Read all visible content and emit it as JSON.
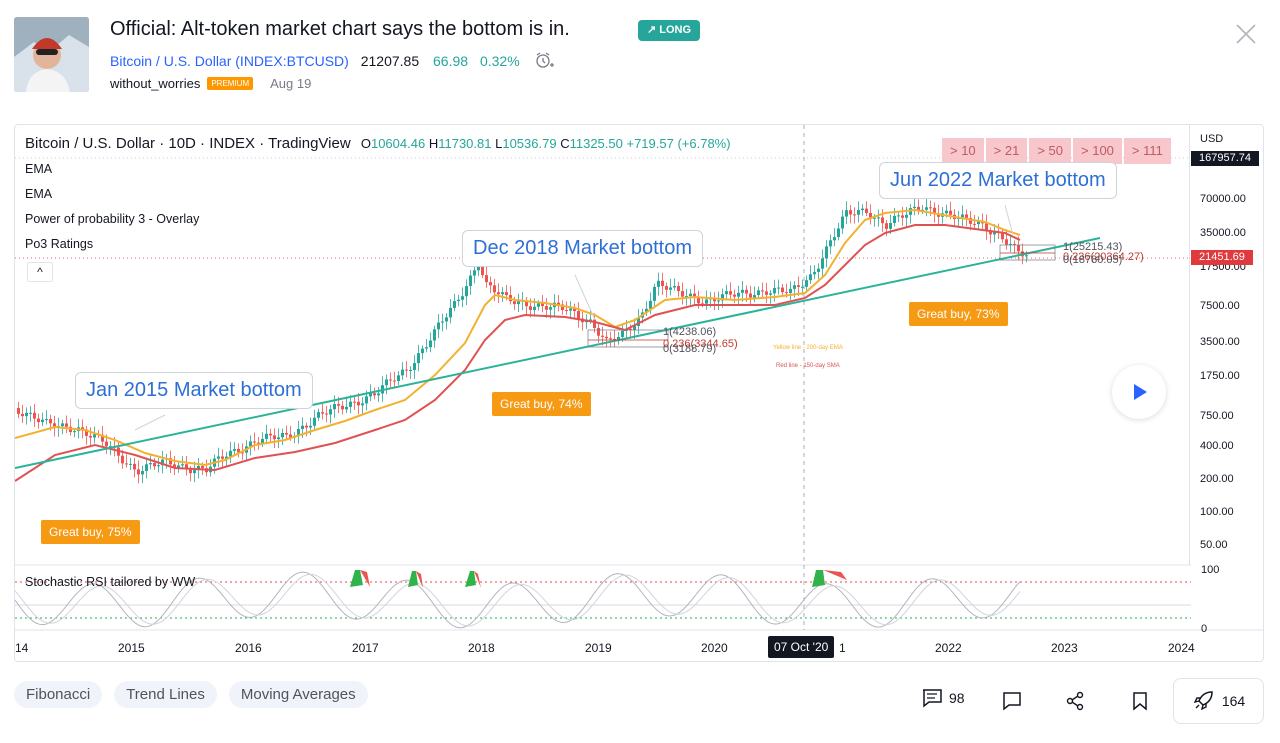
{
  "header": {
    "title": "Official: Alt-token market chart says the bottom is in.",
    "direction_badge": "LONG",
    "symbol_name": "Bitcoin / U.S. Dollar",
    "symbol_code": "(INDEX:BTCUSD)",
    "price": "21207.85",
    "change": "66.98",
    "change_pct": "0.32%",
    "author": "without_worries",
    "author_badge": "PREMIUM",
    "date": "Aug 19"
  },
  "chart": {
    "legend_title": "Bitcoin / U.S. Dollar · 10D · INDEX · TradingView",
    "ohlc": {
      "o_label": "O",
      "o": "10604.46",
      "h_label": "H",
      "h": "11730.81",
      "l_label": "L",
      "l": "10536.79",
      "c_label": "C",
      "c": "11325.50",
      "change": "+719.57 (+6.78%)"
    },
    "indicators": [
      "EMA",
      "EMA",
      "Power of probability 3 - Overlay",
      "Po3 Ratings"
    ],
    "collapse_symbol": "^",
    "filters": [
      "> 10",
      "> 21",
      "> 50",
      "> 100",
      "> 111"
    ],
    "y_axis": {
      "currency": "USD",
      "ticks": [
        "70000.00",
        "35000.00",
        "17500.00",
        "7500.00",
        "3500.00",
        "1750.00",
        "750.00",
        "400.00",
        "200.00",
        "100.00",
        "50.00"
      ],
      "top_tag": "167957.74",
      "price_tag": "21451.69"
    },
    "rsi": {
      "label": "Stochastic RSI tailored by WW",
      "ticks": [
        "100",
        "0"
      ]
    },
    "x_axis": {
      "ticks": [
        "14",
        "2015",
        "2016",
        "2017",
        "2018",
        "2019",
        "2020",
        "1",
        "2022",
        "2023",
        "2024"
      ],
      "crosshair_date": "07 Oct '20"
    },
    "callouts": [
      "Jan 2015 Market bottom",
      "Dec 2018 Market bottom",
      "Jun 2022 Market bottom"
    ],
    "buy_labels": [
      "Great buy,  75%",
      "Great buy,  74%",
      "Great buy,  73%"
    ],
    "fib_2019": [
      "1(4238.06)",
      "0.236(3344.65)",
      "0(3188.79)"
    ],
    "fib_2022": [
      "1(25215.43)",
      "0.236(20364.27)",
      "0(18780.05)"
    ],
    "notes": [
      "Yellow line - 200-day EMA",
      "Red line - 150-day SMA"
    ],
    "colors": {
      "up": "#26a69a",
      "down": "#ef5350",
      "ema_yellow": "#f2b230",
      "sma_red": "#e05252",
      "trend": "#2bb39a",
      "callout_text": "#2e6fd6",
      "buy_bg": "#f59a12"
    }
  },
  "tags": [
    "Fibonacci",
    "Trend Lines",
    "Moving Averages"
  ],
  "actions": {
    "comments": "98",
    "boosts": "164"
  }
}
